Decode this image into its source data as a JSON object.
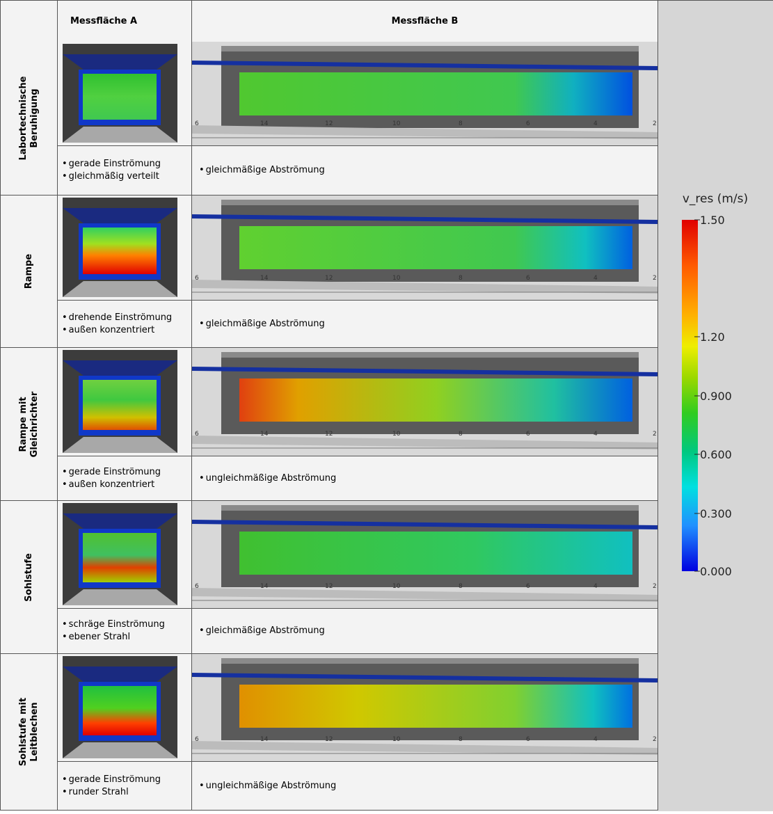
{
  "header": {
    "col_a": "Messfläche A",
    "col_b": "Messfläche B"
  },
  "rows": [
    {
      "label": [
        "Labortechnische",
        "Beruhigung"
      ],
      "a_notes": [
        "gerade Einströmung",
        "gleichmäßig verteilt"
      ],
      "b_notes": [
        "gleichmäßige Abströmung"
      ]
    },
    {
      "label": [
        "Rampe"
      ],
      "a_notes": [
        "drehende Einströmung",
        "außen konzentriert"
      ],
      "b_notes": [
        "gleichmäßige Abströmung"
      ]
    },
    {
      "label": [
        "Rampe mit",
        "Gleichrichter"
      ],
      "a_notes": [
        "gerade Einströmung",
        "außen konzentriert"
      ],
      "b_notes": [
        "ungleichmäßige Abströmung"
      ]
    },
    {
      "label": [
        "Sohlstufe"
      ],
      "a_notes": [
        "schräge Einströmung",
        "ebener Strahl"
      ],
      "b_notes": [
        "gleichmäßige Abströmung"
      ]
    },
    {
      "label": [
        "Sohlstufe mit",
        "Leitblechen"
      ],
      "a_notes": [
        "gerade Einströmung",
        "runder Strahl"
      ],
      "b_notes": [
        "ungleichmäßige Abströmung"
      ]
    }
  ],
  "plot_b_axis": [
    "6",
    "14",
    "12",
    "10",
    "8",
    "6",
    "4",
    "2"
  ],
  "legend": {
    "title": "v_res (m/s)",
    "ticks": [
      "1.50",
      "1.20",
      "0.900",
      "0.600",
      "0.300",
      "0.000"
    ]
  }
}
